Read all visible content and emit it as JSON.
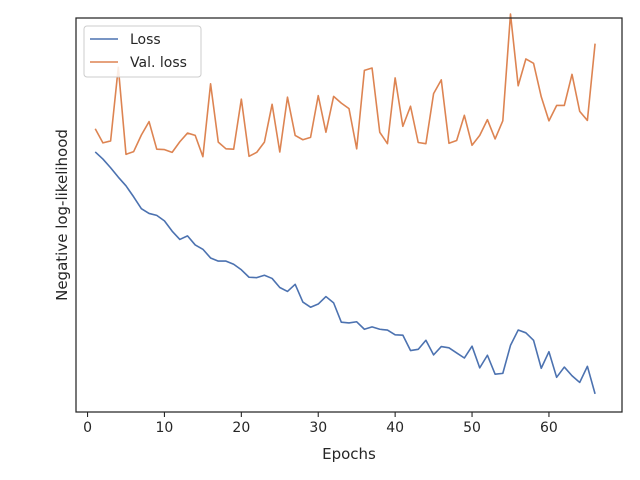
{
  "chart_data": {
    "type": "line",
    "title": "",
    "xlabel": "Epochs",
    "ylabel": "Negative log-likelihood",
    "xlim": [
      -1.5,
      69.5
    ],
    "ylim": [
      0,
      100
    ],
    "xticks": [
      0,
      10,
      20,
      30,
      40,
      50,
      60
    ],
    "yticks_shown": false,
    "grid": false,
    "legend_position": "upper left",
    "series": [
      {
        "name": "Loss",
        "color": "#4c72b0",
        "x": [
          1,
          2,
          3,
          4,
          5,
          6,
          7,
          8,
          9,
          10,
          11,
          12,
          13,
          14,
          15,
          16,
          17,
          18,
          19,
          20,
          21,
          22,
          23,
          24,
          25,
          26,
          27,
          28,
          29,
          30,
          31,
          32,
          33,
          34,
          35,
          36,
          37,
          38,
          39,
          40,
          41,
          42,
          43,
          44,
          45,
          46,
          47,
          48,
          49,
          50,
          51,
          52,
          53,
          54,
          55,
          56,
          57,
          58,
          59,
          60,
          61,
          62,
          63,
          64,
          65,
          66
        ],
        "values": [
          66.0,
          64.2,
          62.0,
          59.6,
          57.4,
          54.6,
          51.6,
          50.4,
          49.9,
          48.5,
          45.9,
          43.8,
          44.7,
          42.4,
          41.3,
          39.1,
          38.3,
          38.3,
          37.5,
          36.1,
          34.2,
          34.1,
          34.7,
          33.9,
          31.6,
          30.6,
          32.4,
          27.9,
          26.6,
          27.4,
          29.3,
          27.7,
          22.8,
          22.6,
          22.9,
          21.0,
          21.6,
          21.0,
          20.8,
          19.6,
          19.5,
          15.6,
          15.9,
          18.2,
          14.5,
          16.6,
          16.3,
          15.0,
          13.7,
          16.7,
          11.2,
          14.4,
          9.6,
          9.8,
          16.9,
          20.8,
          20.1,
          18.2,
          11.1,
          15.3,
          8.8,
          11.4,
          9.2,
          7.5,
          11.6,
          4.6
        ]
      },
      {
        "name": "Val. loss",
        "color": "#dd8452",
        "x": [
          1,
          2,
          3,
          4,
          5,
          6,
          7,
          8,
          9,
          10,
          11,
          12,
          13,
          14,
          15,
          16,
          17,
          18,
          19,
          20,
          21,
          22,
          23,
          24,
          25,
          26,
          27,
          28,
          29,
          30,
          31,
          32,
          33,
          34,
          35,
          36,
          37,
          38,
          39,
          40,
          41,
          42,
          43,
          44,
          45,
          46,
          47,
          48,
          49,
          50,
          51,
          52,
          53,
          54,
          55,
          56,
          57,
          58,
          59,
          60,
          61,
          62,
          63,
          64,
          65,
          66
        ],
        "values": [
          71.9,
          68.3,
          68.8,
          87.5,
          65.4,
          66.1,
          70.3,
          73.7,
          66.7,
          66.6,
          65.9,
          68.6,
          70.8,
          70.2,
          64.8,
          83.3,
          68.5,
          66.8,
          66.7,
          79.4,
          64.9,
          65.9,
          68.5,
          78.1,
          66.0,
          79.9,
          70.2,
          69.1,
          69.7,
          80.3,
          71.0,
          80.1,
          78.4,
          77.0,
          66.8,
          86.7,
          87.3,
          71.0,
          68.1,
          84.8,
          72.5,
          77.6,
          68.4,
          68.1,
          80.8,
          84.3,
          68.2,
          68.9,
          75.3,
          67.7,
          70.2,
          74.2,
          69.3,
          73.9,
          101.0,
          82.8,
          89.6,
          88.5,
          80.0,
          73.9,
          77.8,
          77.8,
          85.7,
          76.3,
          74.0,
          93.5
        ]
      }
    ]
  }
}
